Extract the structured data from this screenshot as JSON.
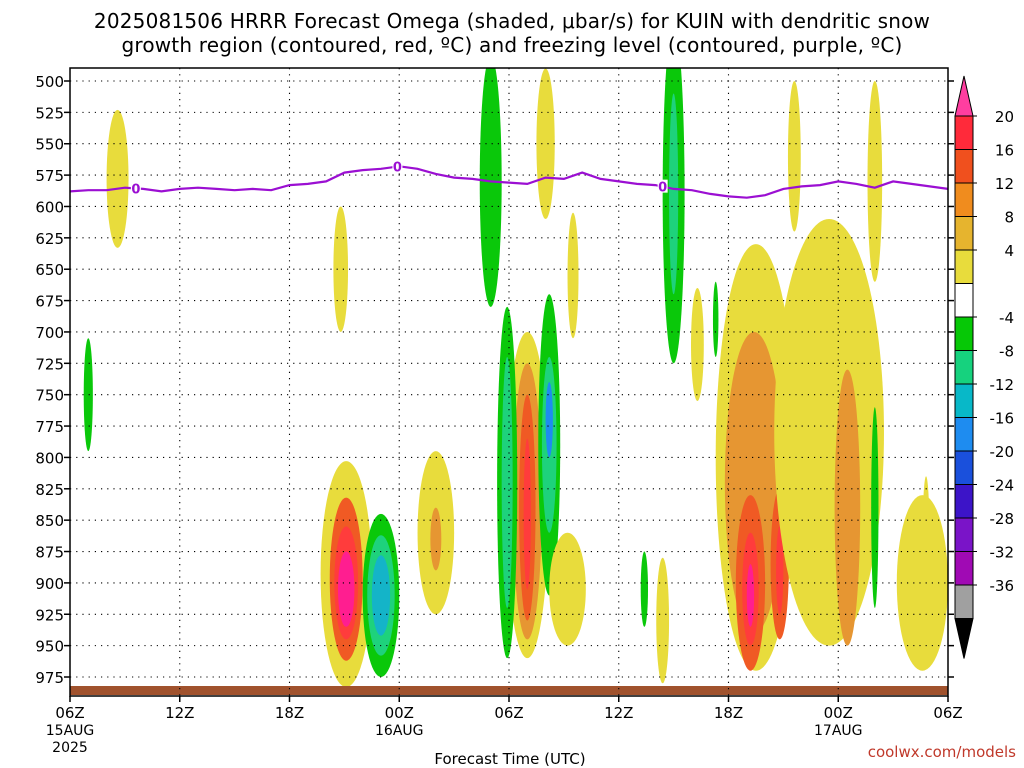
{
  "chart_data": {
    "type": "heatmap",
    "title_line1": "2025081506 HRRR Forecast Omega (shaded, μbar/s) for KUIN with dendritic snow",
    "title_line2": "growth region (contoured, red, ºC) and freezing level (contoured, purple, ºC)",
    "xlabel": "Forecast Time (UTC)",
    "ylabel": "",
    "y_reversed": true,
    "y_ticks": [
      500,
      525,
      550,
      575,
      600,
      625,
      650,
      675,
      700,
      725,
      750,
      775,
      800,
      825,
      850,
      875,
      900,
      925,
      950,
      975
    ],
    "ylim": [
      993,
      493
    ],
    "x_range_hours": [
      0,
      48
    ],
    "x_ticks": [
      {
        "hour": 0,
        "label": "06Z",
        "date": "15AUG",
        "year": "2025"
      },
      {
        "hour": 6,
        "label": "12Z",
        "date": "",
        "year": ""
      },
      {
        "hour": 12,
        "label": "18Z",
        "date": "",
        "year": ""
      },
      {
        "hour": 18,
        "label": "00Z",
        "date": "16AUG",
        "year": ""
      },
      {
        "hour": 24,
        "label": "06Z",
        "date": "",
        "year": ""
      },
      {
        "hour": 30,
        "label": "12Z",
        "date": "",
        "year": ""
      },
      {
        "hour": 36,
        "label": "18Z",
        "date": "",
        "year": ""
      },
      {
        "hour": 42,
        "label": "00Z",
        "date": "17AUG",
        "year": ""
      },
      {
        "hour": 48,
        "label": "06Z",
        "date": "",
        "year": ""
      }
    ],
    "grid": true,
    "colorbar": {
      "labels": [
        "20",
        "16",
        "12",
        "8",
        "4",
        "-4",
        "-8",
        "-12",
        "-16",
        "-20",
        "-24",
        "-28",
        "-32",
        "-36"
      ],
      "colors": [
        "#ff3ea0",
        "#ff2a3a",
        "#f0501e",
        "#f08c1e",
        "#e6b42e",
        "#e8dc3c",
        "#ffffff",
        "#06c806",
        "#16d27e",
        "#08b8c8",
        "#1e8cf0",
        "#1a50dc",
        "#3c14c8",
        "#7a14c8",
        "#a00ab4",
        "#a0a0a0",
        "#000000"
      ]
    },
    "freezing_level": {
      "label": "0",
      "label_hours": [
        3.6,
        17.9,
        32.4
      ],
      "hours": [
        0,
        1,
        2,
        3,
        4,
        5,
        6,
        7,
        8,
        9,
        10,
        11,
        12,
        13,
        14,
        15,
        16,
        17,
        18,
        19,
        20,
        21,
        22,
        23,
        24,
        25,
        26,
        27,
        28,
        29,
        30,
        31,
        32,
        33,
        34,
        35,
        36,
        37,
        38,
        39,
        40,
        41,
        42,
        43,
        44,
        45,
        46,
        47,
        48
      ],
      "pressure": [
        588,
        587,
        587,
        585,
        586,
        588,
        586,
        585,
        586,
        587,
        586,
        587,
        583,
        582,
        580,
        573,
        571,
        570,
        568,
        570,
        574,
        577,
        578,
        580,
        581,
        582,
        577,
        578,
        573,
        578,
        580,
        582,
        583,
        586,
        587,
        590,
        592,
        593,
        591,
        586,
        584,
        583,
        580,
        582,
        585,
        580,
        582,
        584,
        586
      ]
    },
    "omega_shapes": [
      {
        "value": 4,
        "cx": 2.6,
        "cy": 578,
        "rx": 0.6,
        "ry": 55
      },
      {
        "value": 4,
        "cx": 14.8,
        "cy": 650,
        "rx": 0.4,
        "ry": 50
      },
      {
        "value": -4,
        "cx": 1.0,
        "cy": 750,
        "rx": 0.25,
        "ry": 45
      },
      {
        "value": 4,
        "cx": 15.1,
        "cy": 893,
        "rx": 1.4,
        "ry": 90
      },
      {
        "value": 12,
        "cx": 15.1,
        "cy": 897,
        "rx": 0.9,
        "ry": 65
      },
      {
        "value": 16,
        "cx": 15.1,
        "cy": 900,
        "rx": 0.65,
        "ry": 45
      },
      {
        "value": 20,
        "cx": 15.1,
        "cy": 905,
        "rx": 0.45,
        "ry": 30
      },
      {
        "value": -4,
        "cx": 17.0,
        "cy": 910,
        "rx": 1.0,
        "ry": 65
      },
      {
        "value": -8,
        "cx": 17.0,
        "cy": 910,
        "rx": 0.75,
        "ry": 48
      },
      {
        "value": -12,
        "cx": 17.0,
        "cy": 910,
        "rx": 0.5,
        "ry": 32
      },
      {
        "value": 4,
        "cx": 20.0,
        "cy": 860,
        "rx": 1.0,
        "ry": 65
      },
      {
        "value": 8,
        "cx": 20.0,
        "cy": 865,
        "rx": 0.3,
        "ry": 25
      },
      {
        "value": -4,
        "cx": 23.0,
        "cy": 580,
        "rx": 0.6,
        "ry": 100
      },
      {
        "value": 4,
        "cx": 26.0,
        "cy": 550,
        "rx": 0.5,
        "ry": 60
      },
      {
        "value": 4,
        "cx": 27.5,
        "cy": 655,
        "rx": 0.3,
        "ry": 50
      },
      {
        "value": 4,
        "cx": 25.0,
        "cy": 830,
        "rx": 1.2,
        "ry": 130
      },
      {
        "value": 8,
        "cx": 25.0,
        "cy": 835,
        "rx": 0.8,
        "ry": 110
      },
      {
        "value": 12,
        "cx": 25.0,
        "cy": 840,
        "rx": 0.45,
        "ry": 90
      },
      {
        "value": 16,
        "cx": 25.0,
        "cy": 845,
        "rx": 0.2,
        "ry": 60
      },
      {
        "value": -4,
        "cx": 23.9,
        "cy": 820,
        "rx": 0.55,
        "ry": 140
      },
      {
        "value": -8,
        "cx": 23.9,
        "cy": 820,
        "rx": 0.3,
        "ry": 100
      },
      {
        "value": -4,
        "cx": 26.2,
        "cy": 790,
        "rx": 0.6,
        "ry": 120
      },
      {
        "value": -8,
        "cx": 26.2,
        "cy": 790,
        "rx": 0.4,
        "ry": 70
      },
      {
        "value": -16,
        "cx": 26.2,
        "cy": 770,
        "rx": 0.2,
        "ry": 30
      },
      {
        "value": 4,
        "cx": 27.2,
        "cy": 905,
        "rx": 1.0,
        "ry": 45
      },
      {
        "value": -4,
        "cx": 31.4,
        "cy": 905,
        "rx": 0.2,
        "ry": 30
      },
      {
        "value": 4,
        "cx": 32.4,
        "cy": 930,
        "rx": 0.35,
        "ry": 50
      },
      {
        "value": -4,
        "cx": 33.0,
        "cy": 590,
        "rx": 0.6,
        "ry": 135
      },
      {
        "value": -8,
        "cx": 33.0,
        "cy": 590,
        "rx": 0.25,
        "ry": 80
      },
      {
        "value": 4,
        "cx": 34.3,
        "cy": 710,
        "rx": 0.35,
        "ry": 45
      },
      {
        "value": -4,
        "cx": 35.3,
        "cy": 690,
        "rx": 0.15,
        "ry": 30
      },
      {
        "value": 4,
        "cx": 37.5,
        "cy": 800,
        "rx": 2.2,
        "ry": 170
      },
      {
        "value": 8,
        "cx": 37.4,
        "cy": 820,
        "rx": 1.6,
        "ry": 120
      },
      {
        "value": 12,
        "cx": 37.2,
        "cy": 900,
        "rx": 0.8,
        "ry": 70
      },
      {
        "value": 16,
        "cx": 37.2,
        "cy": 905,
        "rx": 0.45,
        "ry": 45
      },
      {
        "value": 20,
        "cx": 37.2,
        "cy": 910,
        "rx": 0.2,
        "ry": 25
      },
      {
        "value": 12,
        "cx": 38.8,
        "cy": 885,
        "rx": 0.5,
        "ry": 60
      },
      {
        "value": 16,
        "cx": 38.8,
        "cy": 890,
        "rx": 0.2,
        "ry": 35
      },
      {
        "value": 4,
        "cx": 39.6,
        "cy": 560,
        "rx": 0.35,
        "ry": 60
      },
      {
        "value": 4,
        "cx": 41.5,
        "cy": 780,
        "rx": 3.0,
        "ry": 170
      },
      {
        "value": 8,
        "cx": 42.5,
        "cy": 840,
        "rx": 0.7,
        "ry": 110
      },
      {
        "value": 4,
        "cx": 44.0,
        "cy": 580,
        "rx": 0.4,
        "ry": 80
      },
      {
        "value": -4,
        "cx": 44.0,
        "cy": 840,
        "rx": 0.2,
        "ry": 80
      },
      {
        "value": 4,
        "cx": 46.6,
        "cy": 900,
        "rx": 1.4,
        "ry": 70
      },
      {
        "value": 4,
        "cx": 46.8,
        "cy": 870,
        "rx": 0.2,
        "ry": 55
      }
    ],
    "credit": "coolwx.com/models"
  }
}
